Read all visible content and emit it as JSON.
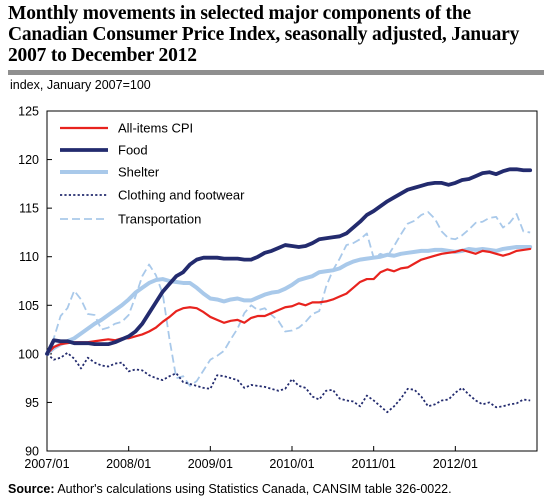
{
  "header": {
    "title": "Monthly movements in selected major components of the Canadian Consumer Price Index, seasonally adjusted, January 2007 to December 2012",
    "subtitle": "index, January 2007=100"
  },
  "footer": {
    "source_label": "Source:",
    "source_text": "Author's calculations using Statistics Canada, CANSIM table 326-0022."
  },
  "chart_data": {
    "type": "line",
    "title": "Monthly movements in selected major components of the Canadian Consumer Price Index, seasonally adjusted, January 2007 to December 2012",
    "ylabel": "index, January 2007=100",
    "ylim": [
      90,
      125
    ],
    "yticks": [
      90,
      95,
      100,
      105,
      110,
      115,
      120,
      125
    ],
    "x_tick_labels": [
      "2007/01",
      "2008/01",
      "2009/01",
      "2010/01",
      "2011/01",
      "2012/01"
    ],
    "x_start": "2007/01",
    "x_end": "2012/12",
    "grid": false,
    "legend_position": "top-left",
    "series": [
      {
        "name": "All-items CPI",
        "color": "#e8231e",
        "style": "solid",
        "values": [
          100.0,
          100.7,
          101.0,
          101.1,
          101.2,
          101.2,
          101.2,
          101.3,
          101.4,
          101.5,
          101.4,
          101.6,
          101.6,
          101.8,
          102.0,
          102.3,
          102.7,
          103.3,
          103.8,
          104.4,
          104.7,
          104.8,
          104.7,
          104.3,
          103.8,
          103.5,
          103.2,
          103.4,
          103.5,
          103.2,
          103.7,
          103.9,
          103.9,
          104.2,
          104.5,
          104.8,
          104.9,
          105.2,
          105.0,
          105.3,
          105.3,
          105.4,
          105.6,
          105.9,
          106.2,
          106.8,
          107.4,
          107.7,
          107.7,
          108.4,
          108.7,
          108.5,
          108.8,
          108.9,
          109.3,
          109.7,
          109.9,
          110.1,
          110.3,
          110.4,
          110.5,
          110.7,
          110.5,
          110.3,
          110.6,
          110.5,
          110.3,
          110.1,
          110.3,
          110.6,
          110.7,
          110.8
        ]
      },
      {
        "name": "Food",
        "color": "#232b6e",
        "style": "solid",
        "values": [
          100.0,
          101.4,
          101.3,
          101.3,
          101.1,
          101.1,
          101.1,
          101.0,
          101.0,
          101.0,
          101.2,
          101.5,
          101.8,
          102.3,
          103.1,
          104.2,
          105.3,
          106.4,
          107.2,
          108.0,
          108.4,
          109.2,
          109.7,
          109.9,
          109.9,
          109.9,
          109.8,
          109.8,
          109.8,
          109.7,
          109.7,
          110.0,
          110.4,
          110.6,
          110.9,
          111.2,
          111.1,
          111.0,
          111.1,
          111.4,
          111.8,
          111.9,
          112.0,
          112.1,
          112.4,
          113.0,
          113.6,
          114.3,
          114.7,
          115.2,
          115.7,
          116.1,
          116.5,
          116.9,
          117.1,
          117.3,
          117.5,
          117.6,
          117.6,
          117.4,
          117.6,
          117.9,
          118.0,
          118.3,
          118.6,
          118.7,
          118.5,
          118.8,
          119.0,
          119.0,
          118.9,
          118.9
        ]
      },
      {
        "name": "Shelter",
        "color": "#a9c9ea",
        "style": "solid",
        "values": [
          100.0,
          100.6,
          101.0,
          101.3,
          101.6,
          102.1,
          102.6,
          103.1,
          103.5,
          104.0,
          104.5,
          105.0,
          105.6,
          106.3,
          106.8,
          107.3,
          107.6,
          107.7,
          107.5,
          107.4,
          107.3,
          107.3,
          106.8,
          106.2,
          105.7,
          105.6,
          105.4,
          105.6,
          105.7,
          105.5,
          105.5,
          105.8,
          106.1,
          106.3,
          106.4,
          106.7,
          107.1,
          107.6,
          107.8,
          108.0,
          108.4,
          108.5,
          108.6,
          108.8,
          109.2,
          109.5,
          109.7,
          109.8,
          109.9,
          110.0,
          110.2,
          110.1,
          110.3,
          110.4,
          110.5,
          110.6,
          110.6,
          110.7,
          110.7,
          110.6,
          110.5,
          110.6,
          110.8,
          110.7,
          110.8,
          110.7,
          110.6,
          110.8,
          110.9,
          111.0,
          111.0,
          111.0
        ]
      },
      {
        "name": "Clothing and footwear",
        "color": "#232b6e",
        "style": "dotted",
        "values": [
          100.0,
          99.4,
          99.6,
          100.1,
          99.5,
          98.5,
          99.6,
          99.1,
          98.8,
          98.7,
          99.0,
          99.1,
          98.2,
          98.4,
          98.3,
          97.8,
          97.5,
          97.3,
          97.7,
          98.0,
          97.1,
          96.9,
          96.7,
          96.5,
          96.4,
          97.8,
          97.7,
          97.5,
          97.3,
          96.5,
          96.8,
          96.7,
          96.6,
          96.4,
          96.2,
          96.4,
          97.4,
          96.7,
          96.5,
          95.6,
          95.3,
          96.2,
          96.3,
          95.4,
          95.2,
          95.1,
          94.6,
          95.7,
          95.2,
          94.6,
          94.0,
          94.6,
          95.4,
          96.4,
          96.3,
          95.6,
          94.6,
          94.8,
          95.2,
          95.3,
          96.0,
          96.5,
          95.8,
          95.2,
          94.8,
          95.0,
          94.5,
          94.6,
          94.8,
          94.9,
          95.3,
          95.2
        ]
      },
      {
        "name": "Transportation",
        "color": "#a9c9ea",
        "style": "dashed",
        "values": [
          100.0,
          101.6,
          103.9,
          104.7,
          106.5,
          105.6,
          104.1,
          104.0,
          102.5,
          102.7,
          103.1,
          103.3,
          104.0,
          105.9,
          108.0,
          109.2,
          108.1,
          106.2,
          101.5,
          97.5,
          97.7,
          96.7,
          97.2,
          98.3,
          99.4,
          99.8,
          100.3,
          101.5,
          102.6,
          104.2,
          105.0,
          104.5,
          104.7,
          104.0,
          103.4,
          102.3,
          102.4,
          102.7,
          103.3,
          104.1,
          104.4,
          106.9,
          108.6,
          109.8,
          111.2,
          111.4,
          111.8,
          112.4,
          109.9,
          110.3,
          110.0,
          111.1,
          112.3,
          113.4,
          113.7,
          114.3,
          114.6,
          113.9,
          112.6,
          111.9,
          111.8,
          112.2,
          112.8,
          113.5,
          113.6,
          114.0,
          114.1,
          113.0,
          113.5,
          114.4,
          112.6,
          112.5
        ]
      }
    ]
  }
}
